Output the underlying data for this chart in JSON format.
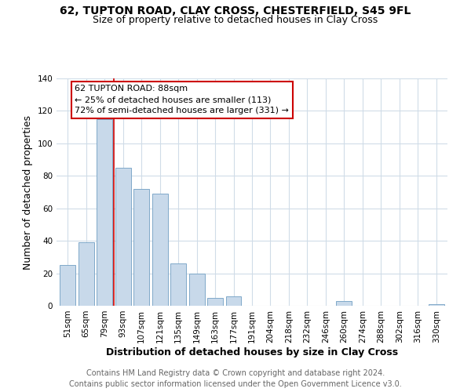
{
  "title": "62, TUPTON ROAD, CLAY CROSS, CHESTERFIELD, S45 9FL",
  "subtitle": "Size of property relative to detached houses in Clay Cross",
  "xlabel": "Distribution of detached houses by size in Clay Cross",
  "ylabel": "Number of detached properties",
  "bar_color": "#c8d9ea",
  "bar_edge_color": "#7fa8c9",
  "background_color": "#ffffff",
  "grid_color": "#d0dce8",
  "categories": [
    "51sqm",
    "65sqm",
    "79sqm",
    "93sqm",
    "107sqm",
    "121sqm",
    "135sqm",
    "149sqm",
    "163sqm",
    "177sqm",
    "191sqm",
    "204sqm",
    "218sqm",
    "232sqm",
    "246sqm",
    "260sqm",
    "274sqm",
    "288sqm",
    "302sqm",
    "316sqm",
    "330sqm"
  ],
  "values": [
    25,
    39,
    115,
    85,
    72,
    69,
    26,
    20,
    5,
    6,
    0,
    0,
    0,
    0,
    0,
    3,
    0,
    0,
    0,
    0,
    1
  ],
  "ylim": [
    0,
    140
  ],
  "yticks": [
    0,
    20,
    40,
    60,
    80,
    100,
    120,
    140
  ],
  "red_line_bin": 2,
  "annotation_title": "62 TUPTON ROAD: 88sqm",
  "annotation_line1": "← 25% of detached houses are smaller (113)",
  "annotation_line2": "72% of semi-detached houses are larger (331) →",
  "footer_line1": "Contains HM Land Registry data © Crown copyright and database right 2024.",
  "footer_line2": "Contains public sector information licensed under the Open Government Licence v3.0.",
  "title_fontsize": 10,
  "subtitle_fontsize": 9,
  "axis_label_fontsize": 9,
  "tick_fontsize": 7.5,
  "annotation_fontsize": 8,
  "footer_fontsize": 7
}
